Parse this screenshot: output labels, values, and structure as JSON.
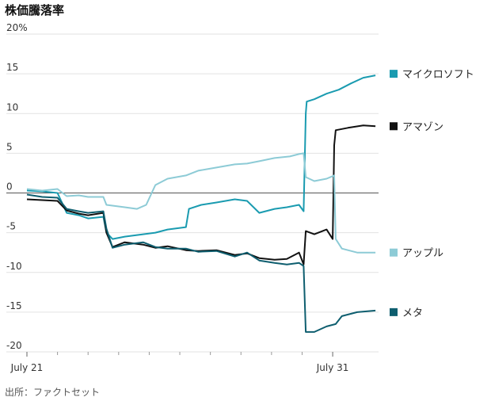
{
  "title": "株価騰落率",
  "source": "出所：ファクトセット",
  "chart_data": {
    "type": "line",
    "title": "株価騰落率",
    "ylabel": "",
    "xlabel": "",
    "y_ticks": [
      "20%",
      "15",
      "10",
      "5",
      "0",
      "-5",
      "-10",
      "-15",
      "-20"
    ],
    "y_tick_values": [
      20,
      15,
      10,
      5,
      0,
      -5,
      -10,
      -15,
      -20
    ],
    "ylim": [
      -20,
      20
    ],
    "x_tick_labels": [
      "July 21",
      "July 31"
    ],
    "x_tick_days": [
      0,
      10
    ],
    "x_range_days": [
      0,
      11.5
    ],
    "x_minor_tick_days": [
      1,
      2,
      3,
      4,
      5,
      6,
      7,
      8,
      9
    ],
    "zero_line": true,
    "grid": "horizontal",
    "series": [
      {
        "name": "マイクロソフト",
        "color": "#1a9bb0",
        "points": [
          [
            0,
            0.3
          ],
          [
            0.5,
            0.2
          ],
          [
            1,
            0
          ],
          [
            1.3,
            -2.5
          ],
          [
            1.7,
            -2.8
          ],
          [
            2,
            -3.2
          ],
          [
            2.5,
            -3
          ],
          [
            2.6,
            -5
          ],
          [
            2.8,
            -5.8
          ],
          [
            3.2,
            -5.5
          ],
          [
            3.8,
            -5.2
          ],
          [
            4.2,
            -5
          ],
          [
            4.6,
            -4.6
          ],
          [
            5.2,
            -4.3
          ],
          [
            5.3,
            -2
          ],
          [
            5.7,
            -1.5
          ],
          [
            6.2,
            -1.2
          ],
          [
            6.8,
            -0.8
          ],
          [
            7.2,
            -1
          ],
          [
            7.6,
            -2.5
          ],
          [
            8.1,
            -2
          ],
          [
            8.5,
            -1.8
          ],
          [
            8.9,
            -1.5
          ],
          [
            9.05,
            -2.3
          ],
          [
            9.12,
            10
          ],
          [
            9.15,
            11.5
          ],
          [
            9.4,
            11.8
          ],
          [
            9.8,
            12.5
          ],
          [
            10.2,
            13
          ],
          [
            10.6,
            13.8
          ],
          [
            11,
            14.5
          ],
          [
            11.4,
            14.8
          ]
        ]
      },
      {
        "name": "アマゾン",
        "color": "#111111",
        "points": [
          [
            0,
            -0.8
          ],
          [
            0.5,
            -0.9
          ],
          [
            1,
            -1
          ],
          [
            1.3,
            -2.2
          ],
          [
            1.7,
            -2.6
          ],
          [
            2,
            -2.8
          ],
          [
            2.5,
            -2.5
          ],
          [
            2.6,
            -5
          ],
          [
            2.8,
            -6.8
          ],
          [
            3.2,
            -6.2
          ],
          [
            3.8,
            -6.5
          ],
          [
            4.2,
            -6.9
          ],
          [
            4.6,
            -6.7
          ],
          [
            5.2,
            -7.2
          ],
          [
            5.6,
            -7.3
          ],
          [
            6.2,
            -7.2
          ],
          [
            6.8,
            -7.8
          ],
          [
            7.2,
            -7.6
          ],
          [
            7.6,
            -8.2
          ],
          [
            8.1,
            -8.4
          ],
          [
            8.5,
            -8.3
          ],
          [
            8.9,
            -7.5
          ],
          [
            9.05,
            -9
          ],
          [
            9.12,
            -4.8
          ],
          [
            9.4,
            -5.2
          ],
          [
            9.8,
            -4.6
          ],
          [
            10,
            -5.8
          ],
          [
            10.05,
            6
          ],
          [
            10.1,
            7.9
          ],
          [
            10.5,
            8.2
          ],
          [
            11,
            8.5
          ],
          [
            11.4,
            8.4
          ]
        ]
      },
      {
        "name": "アップル",
        "color": "#8dcbd6",
        "points": [
          [
            0,
            0.5
          ],
          [
            0.5,
            0.3
          ],
          [
            1,
            0.5
          ],
          [
            1.3,
            -0.4
          ],
          [
            1.7,
            -0.3
          ],
          [
            2,
            -0.5
          ],
          [
            2.5,
            -0.5
          ],
          [
            2.6,
            -1.5
          ],
          [
            3.2,
            -1.8
          ],
          [
            3.6,
            -2
          ],
          [
            3.9,
            -1.5
          ],
          [
            4.2,
            1
          ],
          [
            4.6,
            1.8
          ],
          [
            5.2,
            2.2
          ],
          [
            5.6,
            2.8
          ],
          [
            6.2,
            3.2
          ],
          [
            6.8,
            3.6
          ],
          [
            7.2,
            3.7
          ],
          [
            7.6,
            4
          ],
          [
            8.1,
            4.4
          ],
          [
            8.6,
            4.6
          ],
          [
            8.9,
            4.9
          ],
          [
            9.05,
            5
          ],
          [
            9.12,
            2
          ],
          [
            9.4,
            1.5
          ],
          [
            9.8,
            1.8
          ],
          [
            10.05,
            2.2
          ],
          [
            10.1,
            -5.8
          ],
          [
            10.3,
            -7
          ],
          [
            10.8,
            -7.5
          ],
          [
            11.4,
            -7.5
          ]
        ]
      },
      {
        "name": "メタ",
        "color": "#0e5e6f",
        "points": [
          [
            0,
            -0.2
          ],
          [
            0.5,
            -0.5
          ],
          [
            1,
            -0.6
          ],
          [
            1.3,
            -2
          ],
          [
            1.7,
            -2.3
          ],
          [
            2,
            -2.5
          ],
          [
            2.5,
            -2.3
          ],
          [
            2.6,
            -4.5
          ],
          [
            2.8,
            -6.9
          ],
          [
            3.2,
            -6.5
          ],
          [
            3.8,
            -6.2
          ],
          [
            4.2,
            -6.8
          ],
          [
            4.6,
            -7
          ],
          [
            5.2,
            -7
          ],
          [
            5.6,
            -7.4
          ],
          [
            6.2,
            -7.3
          ],
          [
            6.8,
            -8
          ],
          [
            7.2,
            -7.5
          ],
          [
            7.6,
            -8.5
          ],
          [
            8.1,
            -8.8
          ],
          [
            8.5,
            -9
          ],
          [
            8.9,
            -8.8
          ],
          [
            9.05,
            -9.2
          ],
          [
            9.12,
            -17.5
          ],
          [
            9.4,
            -17.5
          ],
          [
            9.8,
            -16.8
          ],
          [
            10.1,
            -16.5
          ],
          [
            10.3,
            -15.5
          ],
          [
            10.8,
            -15
          ],
          [
            11.4,
            -14.8
          ]
        ]
      }
    ],
    "legend": [
      {
        "label": "マイクロソフト",
        "color": "#1a9bb0",
        "y": 15
      },
      {
        "label": "アマゾン",
        "color": "#111111",
        "y": 8.4
      },
      {
        "label": "アップル",
        "color": "#8dcbd6",
        "y": -7.5
      },
      {
        "label": "メタ",
        "color": "#0e5e6f",
        "y": -15
      }
    ]
  }
}
